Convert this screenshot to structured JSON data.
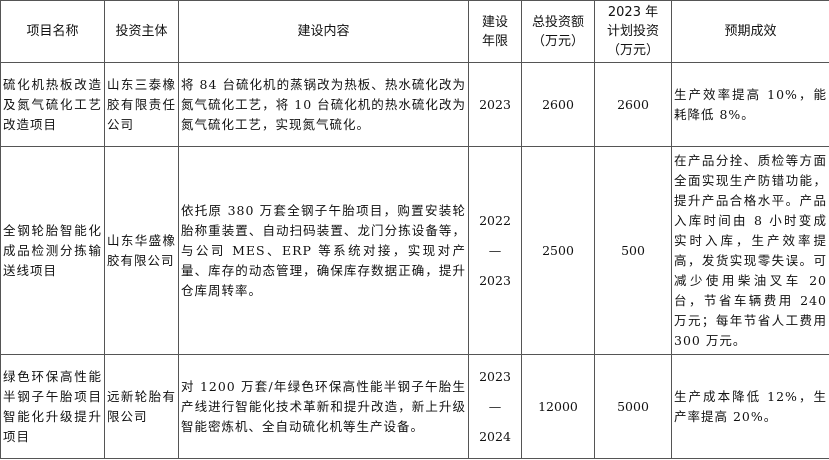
{
  "table": {
    "headers": [
      "项目名称",
      "投资主体",
      "建设内容",
      "建设年限",
      "总投资额（万元）",
      "2023年计划投资（万元）",
      "预期成效"
    ],
    "header_lines": [
      [
        "项目名称"
      ],
      [
        "投资主体"
      ],
      [
        "建设内容"
      ],
      [
        "建设",
        "年限"
      ],
      [
        "总投资额",
        "（万元）"
      ],
      [
        "2023 年",
        "计划投资",
        "（万元）"
      ],
      [
        "预期成效"
      ]
    ],
    "rows": [
      {
        "name": "硫化机热板改造及氮气硫化工艺改造项目",
        "investor": "山东三泰橡胶有限责任公司",
        "content": "将 84 台硫化机的蒸锅改为热板、热水硫化改为氮气硫化工艺，将 10 台硫化机的热水硫化改为氮气硫化工艺，实现氮气硫化。",
        "period": "2023",
        "total": "2600",
        "plan_2023": "2600",
        "effect": "生产效率提高 10%，能耗降低 8%。"
      },
      {
        "name": "全钢轮胎智能化成品检测分拣输送线项目",
        "investor": "山东华盛橡胶有限公司",
        "content": "依托原 380 万套全钢子午胎项目，购置安装轮胎称重装置、自动扫码装置、龙门分拣设备等，与公司 MES、ERP 等系统对接，实现对产量、库存的动态管理，确保库存数据正确，提升仓库周转率。",
        "period": "2022—2023",
        "period_lines": [
          "2022",
          "—",
          "2023"
        ],
        "total": "2500",
        "plan_2023": "500",
        "effect": "在产品分拴、质检等方面全面实现生产防错功能，提升产品合格水平。产品入库时间由 8 小时变成实时入库，生产效率提高，发货实现零失误。可减少使用柴油叉车 20 台，节省车辆费用 240 万元；每年节省人工费用 300 万元。"
      },
      {
        "name": "绿色环保高性能半钢子午胎项目智能化升级提升项目",
        "investor": "远新轮胎有限公司",
        "content": "对 1200 万套/年绿色环保高性能半钢子午胎生产线进行智能化技术革新和提升改造，新上升级智能密炼机、全自动硫化机等生产设备。",
        "period": "2023—2024",
        "period_lines": [
          "2023",
          "—",
          "2024"
        ],
        "total": "12000",
        "plan_2023": "5000",
        "effect": "生产成本降低 12%，生产率提高 20%。"
      }
    ]
  }
}
